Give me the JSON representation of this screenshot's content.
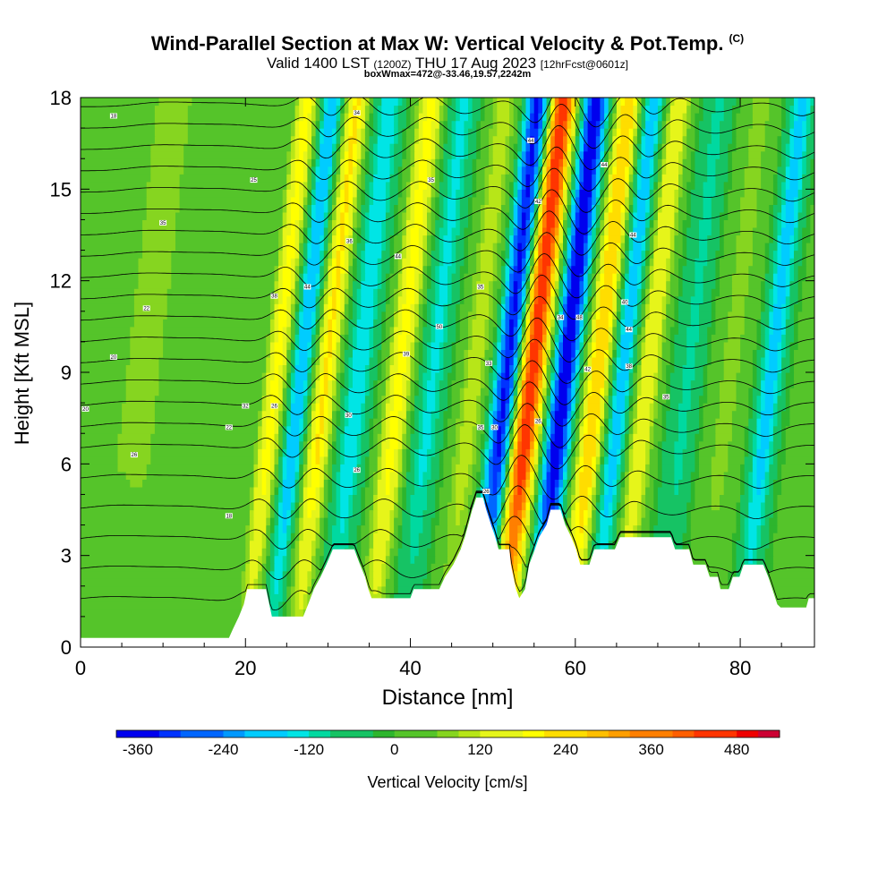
{
  "header": {
    "title": "Wind-Parallel Section at Max W: Vertical Velocity & Pot.Temp.",
    "copyright": "(C)",
    "valid_prefix": "Valid 1400 LST",
    "valid_utc": "(1200Z)",
    "valid_date": "THU 17 Aug 2023",
    "forecast": "[12hrFcst@0601z]",
    "box_info": "boxWmax=472@-33.46,19.57,2242m"
  },
  "colors": {
    "terrain": "#ffffff",
    "background_green": "#2db52d",
    "contour": "#000000",
    "palette": [
      "#0000ee",
      "#0033ff",
      "#0066ff",
      "#0099ff",
      "#00ccff",
      "#00e5e5",
      "#00d9a0",
      "#16c364",
      "#2db52d",
      "#55c42a",
      "#86d520",
      "#b7e618",
      "#e6f51a",
      "#ffff00",
      "#ffdd00",
      "#ffbf00",
      "#ff9f00",
      "#ff7f00",
      "#ff5f00",
      "#ff3500",
      "#ee0000",
      "#cc0033"
    ]
  },
  "chart_data": {
    "type": "heatmap",
    "xlabel": "Distance [nm]",
    "ylabel": "Height [Kft MSL]",
    "xlim": [
      0,
      89
    ],
    "ylim": [
      0,
      18
    ],
    "x_ticks": [
      0,
      20,
      40,
      60,
      80
    ],
    "y_ticks": [
      0,
      3,
      6,
      9,
      12,
      15,
      18
    ],
    "colorbar": {
      "label": "Vertical Velocity [cm/s]",
      "min": -390,
      "max": 540,
      "step": 30,
      "tick_values": [
        -360,
        -240,
        -120,
        0,
        120,
        240,
        360,
        480
      ],
      "tick_labels": [
        "-360",
        "-240",
        "-120",
        "0",
        "120",
        "240",
        "360",
        "480"
      ]
    },
    "terrain_kft": [
      [
        0,
        0.3
      ],
      [
        18,
        0.3
      ],
      [
        18.5,
        0.6
      ],
      [
        19.2,
        1
      ],
      [
        19.8,
        1.4
      ],
      [
        20.2,
        1.9
      ],
      [
        22.5,
        1.9
      ],
      [
        23.2,
        1
      ],
      [
        27,
        1
      ],
      [
        27.6,
        1.4
      ],
      [
        28.3,
        1.9
      ],
      [
        29.1,
        2.3
      ],
      [
        29.8,
        2.7
      ],
      [
        30.6,
        3.2
      ],
      [
        33.2,
        3.2
      ],
      [
        33.9,
        2.7
      ],
      [
        34.5,
        2.3
      ],
      [
        34.9,
        1.9
      ],
      [
        35.3,
        1.6
      ],
      [
        40,
        1.6
      ],
      [
        40.4,
        1.9
      ],
      [
        43.5,
        1.9
      ],
      [
        44.2,
        2.3
      ],
      [
        45.2,
        2.7
      ],
      [
        46.1,
        3.2
      ],
      [
        46.6,
        3.6
      ],
      [
        47,
        4
      ],
      [
        47.5,
        4.5
      ],
      [
        48,
        4.9
      ],
      [
        48.8,
        4.9
      ],
      [
        49.2,
        4.5
      ],
      [
        49.8,
        4
      ],
      [
        50.3,
        3.6
      ],
      [
        50.7,
        3.2
      ],
      [
        52,
        3.2
      ],
      [
        52.2,
        2.7
      ],
      [
        52.8,
        1.9
      ],
      [
        53.2,
        1.6
      ],
      [
        53.9,
        1.9
      ],
      [
        54.4,
        2.7
      ],
      [
        55.1,
        3.2
      ],
      [
        55.6,
        3.6
      ],
      [
        56.5,
        4
      ],
      [
        57,
        4.5
      ],
      [
        58.2,
        4.5
      ],
      [
        58.8,
        4
      ],
      [
        59.5,
        3.6
      ],
      [
        60.1,
        3.2
      ],
      [
        60.6,
        2.7
      ],
      [
        61.7,
        2.7
      ],
      [
        62.3,
        3.2
      ],
      [
        64.8,
        3.2
      ],
      [
        65.4,
        3.6
      ],
      [
        71.6,
        3.6
      ],
      [
        72.1,
        3.2
      ],
      [
        73.8,
        3.2
      ],
      [
        74.3,
        2.7
      ],
      [
        75.8,
        2.7
      ],
      [
        76.3,
        2.3
      ],
      [
        77.3,
        2.3
      ],
      [
        77.6,
        1.9
      ],
      [
        78.6,
        1.9
      ],
      [
        79.1,
        2.3
      ],
      [
        79.9,
        2.3
      ],
      [
        80.4,
        2.7
      ],
      [
        82.8,
        2.7
      ],
      [
        83.4,
        2.3
      ],
      [
        83.9,
        1.9
      ],
      [
        84.5,
        1.4
      ],
      [
        84.9,
        1.3
      ],
      [
        88,
        1.3
      ],
      [
        88.3,
        1.6
      ],
      [
        89,
        1.6
      ]
    ],
    "w_bands": [
      {
        "x": 1,
        "amp": 45,
        "width": 2.5
      },
      {
        "x": 5,
        "amp": 60,
        "width": 3
      },
      {
        "x": 11,
        "amp": 55,
        "width": 3
      },
      {
        "x": 20,
        "amp": 200,
        "width": 1.4
      },
      {
        "x": 23,
        "amp": -200,
        "width": 1.4
      },
      {
        "x": 26,
        "amp": 220,
        "width": 1.5
      },
      {
        "x": 30,
        "amp": -150,
        "width": 1.8
      },
      {
        "x": 35,
        "amp": 200,
        "width": 1.6
      },
      {
        "x": 39,
        "amp": -130,
        "width": 1.8
      },
      {
        "x": 44,
        "amp": 110,
        "width": 1.8
      },
      {
        "x": 48,
        "amp": -350,
        "width": 1.5
      },
      {
        "x": 51,
        "amp": 470,
        "width": 1.6
      },
      {
        "x": 55,
        "amp": -380,
        "width": 1.5
      },
      {
        "x": 59,
        "amp": 270,
        "width": 1.5
      },
      {
        "x": 62,
        "amp": -190,
        "width": 1.5
      },
      {
        "x": 65,
        "amp": 170,
        "width": 1.6
      },
      {
        "x": 70,
        "amp": -100,
        "width": 2
      },
      {
        "x": 75,
        "amp": 70,
        "width": 2.5
      },
      {
        "x": 80,
        "amp": -170,
        "width": 1.6
      },
      {
        "x": 86,
        "amp": 60,
        "width": 2.5
      }
    ],
    "theta_contours_kft": [
      1.5,
      2.5,
      3.5,
      4.5,
      5.5,
      6.5,
      7.2,
      7.9,
      8.6,
      9.3,
      10,
      10.7,
      11.4,
      12.1,
      12.8,
      13.5,
      14.2,
      14.9,
      15.6,
      16.3,
      17,
      17.7
    ],
    "contour_labels": [
      {
        "x": 4,
        "y": 17.4,
        "text": "18"
      },
      {
        "x": 10,
        "y": 13.9,
        "text": "35"
      },
      {
        "x": 8,
        "y": 11.1,
        "text": "22"
      },
      {
        "x": 4,
        "y": 9.5,
        "text": "20"
      },
      {
        "x": 0.6,
        "y": 7.8,
        "text": "20"
      },
      {
        "x": 6.5,
        "y": 6.3,
        "text": "26"
      },
      {
        "x": 18,
        "y": 4.3,
        "text": "18"
      },
      {
        "x": 18,
        "y": 7.2,
        "text": "22"
      },
      {
        "x": 20,
        "y": 7.9,
        "text": "32"
      },
      {
        "x": 21,
        "y": 15.3,
        "text": "25"
      },
      {
        "x": 33.5,
        "y": 17.5,
        "text": "34"
      },
      {
        "x": 32.6,
        "y": 13.3,
        "text": "36"
      },
      {
        "x": 23.5,
        "y": 11.5,
        "text": "38"
      },
      {
        "x": 27.5,
        "y": 11.8,
        "text": "44"
      },
      {
        "x": 23.5,
        "y": 7.9,
        "text": "26"
      },
      {
        "x": 32.5,
        "y": 7.6,
        "text": "30"
      },
      {
        "x": 33.5,
        "y": 5.8,
        "text": "26"
      },
      {
        "x": 38.5,
        "y": 12.8,
        "text": "44"
      },
      {
        "x": 42.5,
        "y": 15.3,
        "text": "35"
      },
      {
        "x": 39.5,
        "y": 9.6,
        "text": "39"
      },
      {
        "x": 43.5,
        "y": 10.5,
        "text": "50"
      },
      {
        "x": 48.5,
        "y": 11.8,
        "text": "35"
      },
      {
        "x": 49.5,
        "y": 9.3,
        "text": "33"
      },
      {
        "x": 48.5,
        "y": 7.2,
        "text": "35"
      },
      {
        "x": 50.2,
        "y": 7.2,
        "text": "30"
      },
      {
        "x": 49.2,
        "y": 5.1,
        "text": "26"
      },
      {
        "x": 54.6,
        "y": 16.6,
        "text": "44"
      },
      {
        "x": 55.5,
        "y": 14.6,
        "text": "42"
      },
      {
        "x": 58.2,
        "y": 10.8,
        "text": "34"
      },
      {
        "x": 60.5,
        "y": 10.8,
        "text": "48"
      },
      {
        "x": 55.5,
        "y": 7.4,
        "text": "26"
      },
      {
        "x": 61.5,
        "y": 9.1,
        "text": "42"
      },
      {
        "x": 63.5,
        "y": 15.8,
        "text": "44"
      },
      {
        "x": 67,
        "y": 13.5,
        "text": "44"
      },
      {
        "x": 66,
        "y": 11.3,
        "text": "40"
      },
      {
        "x": 66.5,
        "y": 10.4,
        "text": "44"
      },
      {
        "x": 66.5,
        "y": 9.2,
        "text": "38"
      },
      {
        "x": 71,
        "y": 8.2,
        "text": "35"
      }
    ]
  }
}
